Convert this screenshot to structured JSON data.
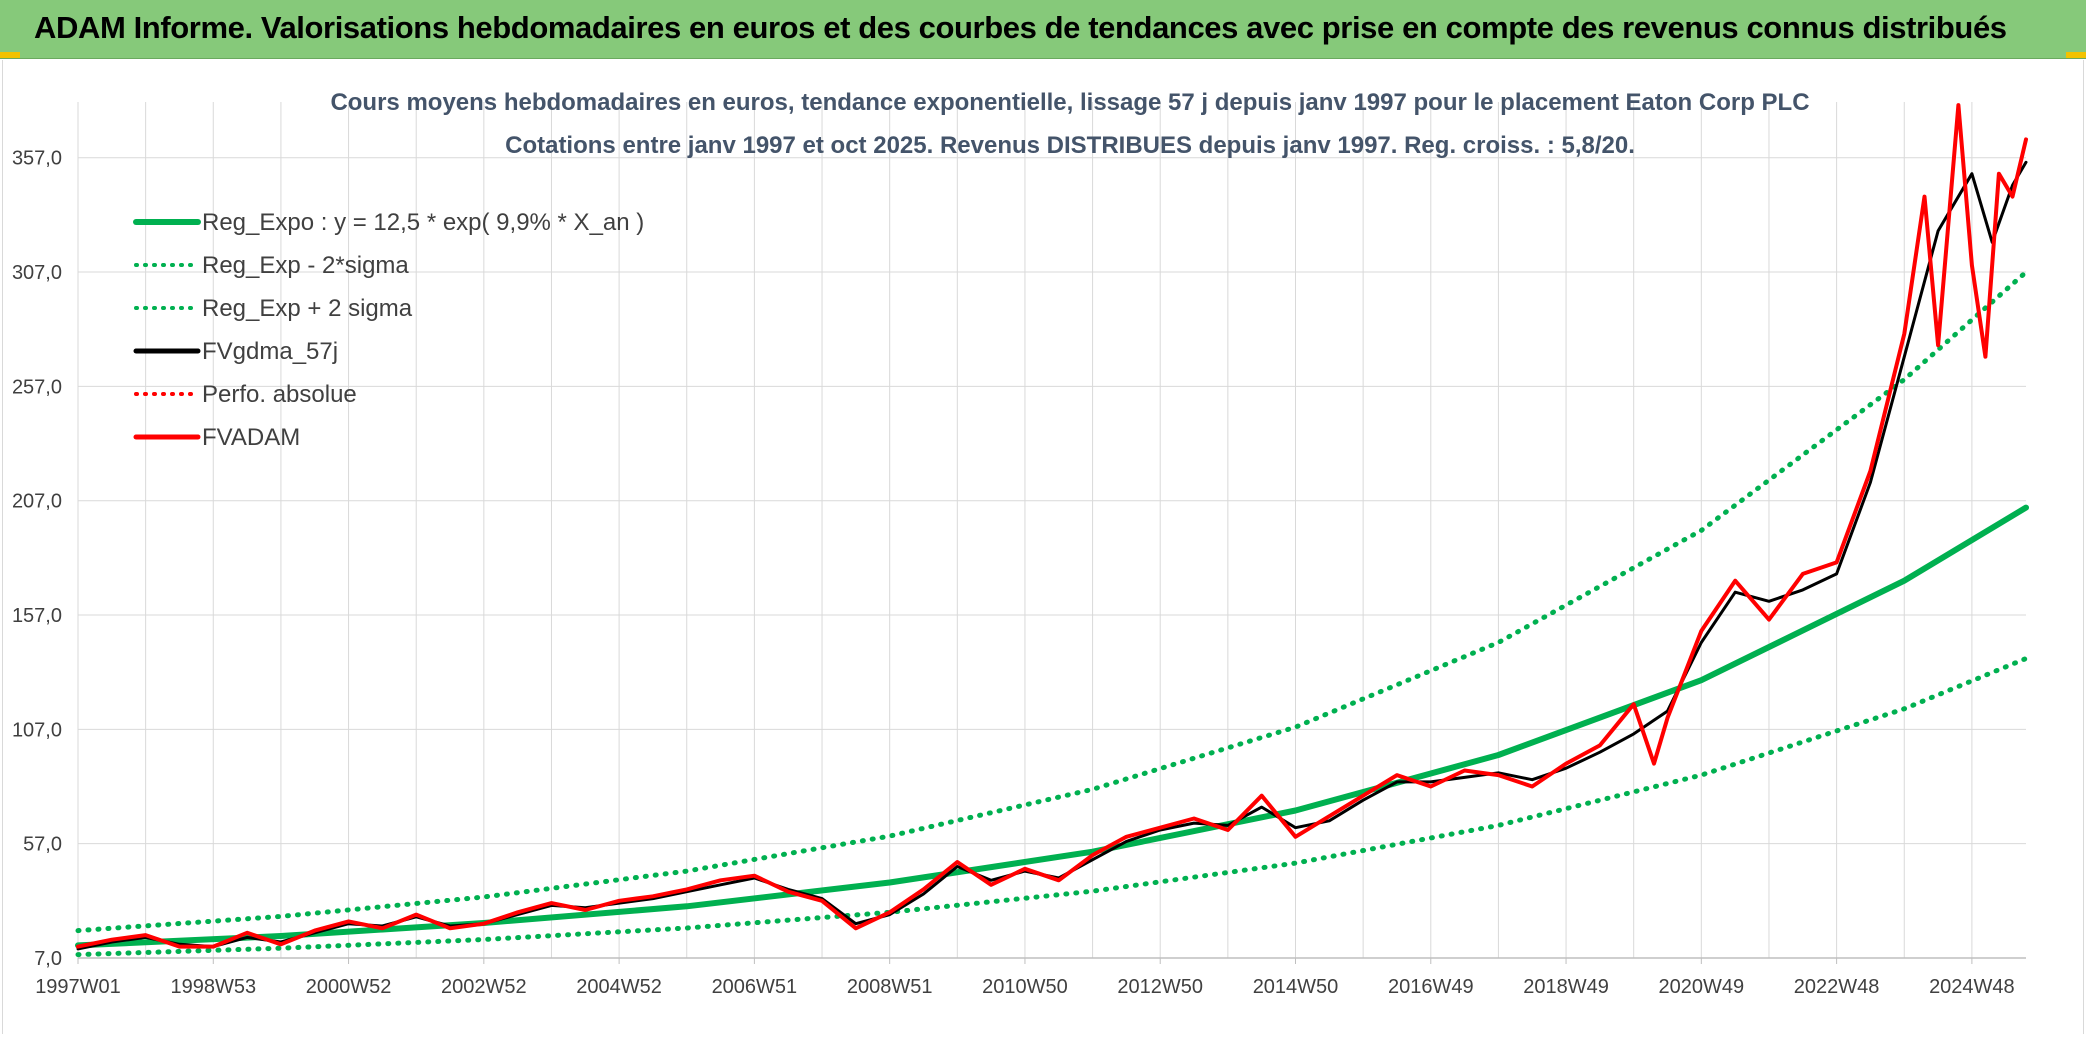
{
  "header": {
    "title": "ADAM Informe. Valorisations hebdomadaires en euros et des courbes de tendances avec prise en compte des revenus connus distribués"
  },
  "colors": {
    "header_bg": "#86c97a",
    "green": "#00b050",
    "black": "#000000",
    "red": "#ff0000",
    "grid": "#d9d9d9",
    "text": "#404040",
    "title_text": "#44546a"
  },
  "chart_data": {
    "type": "line",
    "title_line1": "Cours moyens hebdomadaires en euros, tendance exponentielle, lissage 57 j depuis janv 1997 pour le placement Eaton Corp PLC",
    "title_line2": "Cotations entre janv 1997 et oct 2025. Revenus DISTRIBUES depuis janv 1997. Reg. croiss. : 5,8/20.",
    "xlabel": "",
    "ylabel": "",
    "x_range": [
      1997.0,
      2025.8
    ],
    "ylim": [
      7,
      377
    ],
    "y_ticks": [
      "7,0",
      "57,0",
      "107,0",
      "157,0",
      "207,0",
      "257,0",
      "307,0",
      "357,0"
    ],
    "y_tick_values": [
      7,
      57,
      107,
      157,
      207,
      257,
      307,
      357
    ],
    "x_tick_labels": [
      "1997W01",
      "1998W53",
      "2000W52",
      "2002W52",
      "2004W52",
      "2006W51",
      "2008W51",
      "2010W50",
      "2012W50",
      "2014W50",
      "2016W49",
      "2018W49",
      "2020W49",
      "2022W48",
      "2024W48"
    ],
    "x_tick_years": [
      1997.0,
      1999.0,
      2001.0,
      2003.0,
      2005.0,
      2007.0,
      2009.0,
      2011.0,
      2013.0,
      2015.0,
      2017.0,
      2019.0,
      2021.0,
      2023.0,
      2025.0
    ],
    "grid": true,
    "legend_position": "top-left",
    "legend": [
      {
        "label": "Reg_Expo : y = 12,5 * exp( 9,9% *  X_an )",
        "color": "#00b050",
        "style": "solid"
      },
      {
        "label": "Reg_Exp - 2*sigma",
        "color": "#00b050",
        "style": "dotted"
      },
      {
        "label": "Reg_Exp + 2 sigma",
        "color": "#00b050",
        "style": "dotted"
      },
      {
        "label": "FVgdma_57j",
        "color": "#000000",
        "style": "solid"
      },
      {
        "label": "Perfo. absolue",
        "color": "#ff0000",
        "style": "dotted"
      },
      {
        "label": "FVADAM",
        "color": "#ff0000",
        "style": "solid"
      }
    ],
    "series": [
      {
        "name": "Reg_Expo : y = 12,5 * exp( 9,9% *  X_an )",
        "x": [
          1997.0,
          2000.0,
          2003.0,
          2006.0,
          2009.0,
          2012.0,
          2015.0,
          2018.0,
          2021.0,
          2024.0,
          2025.8
        ],
        "values": [
          12.5,
          16.6,
          22.3,
          29.6,
          40.0,
          53.5,
          71.5,
          95.8,
          128.5,
          172.0,
          204.0
        ]
      },
      {
        "name": "Reg_Exp - 2*sigma",
        "x": [
          1997.0,
          2000.0,
          2003.0,
          2006.0,
          2009.0,
          2012.0,
          2015.0,
          2018.0,
          2021.0,
          2024.0,
          2025.8
        ],
        "values": [
          8.5,
          11.3,
          15.1,
          20.1,
          27.0,
          36.2,
          48.5,
          65.0,
          87.0,
          116.0,
          138.0
        ]
      },
      {
        "name": "Reg_Exp + 2 sigma",
        "x": [
          1997.0,
          2000.0,
          2003.0,
          2006.0,
          2009.0,
          2012.0,
          2015.0,
          2018.0,
          2021.0,
          2024.0,
          2025.8
        ],
        "values": [
          19.0,
          25.2,
          33.7,
          45.0,
          60.3,
          80.8,
          108.0,
          145.0,
          194.0,
          260.0,
          307.0
        ]
      },
      {
        "name": "FVgdma_57j",
        "x": [
          1997.0,
          1997.5,
          1998.0,
          1998.5,
          1999.0,
          1999.5,
          2000.0,
          2000.5,
          2001.0,
          2001.5,
          2002.0,
          2002.5,
          2003.0,
          2003.5,
          2004.0,
          2004.5,
          2005.0,
          2005.5,
          2006.0,
          2006.5,
          2007.0,
          2007.5,
          2008.0,
          2008.5,
          2009.0,
          2009.5,
          2010.0,
          2010.5,
          2011.0,
          2011.5,
          2012.0,
          2012.5,
          2013.0,
          2013.5,
          2014.0,
          2014.5,
          2015.0,
          2015.5,
          2016.0,
          2016.5,
          2017.0,
          2017.5,
          2018.0,
          2018.5,
          2019.0,
          2019.5,
          2020.0,
          2020.5,
          2021.0,
          2021.5,
          2022.0,
          2022.5,
          2023.0,
          2023.5,
          2024.0,
          2024.5,
          2025.0,
          2025.3,
          2025.6,
          2025.8
        ],
        "values": [
          11,
          14,
          16,
          13,
          12,
          16,
          14,
          18,
          22,
          21,
          25,
          21,
          22,
          26,
          30,
          29,
          31,
          33,
          36,
          39,
          42,
          37,
          33,
          22,
          26,
          35,
          47,
          41,
          45,
          42,
          50,
          58,
          63,
          66,
          65,
          73,
          64,
          67,
          76,
          84,
          84,
          86,
          88,
          85,
          90,
          97,
          105,
          115,
          145,
          167,
          163,
          168,
          175,
          215,
          270,
          325,
          350,
          320,
          345,
          355
        ]
      },
      {
        "name": "FVADAM",
        "x": [
          1997.0,
          1997.5,
          1998.0,
          1998.5,
          1999.0,
          1999.5,
          2000.0,
          2000.5,
          2001.0,
          2001.5,
          2002.0,
          2002.5,
          2003.0,
          2003.5,
          2004.0,
          2004.5,
          2005.0,
          2005.5,
          2006.0,
          2006.5,
          2007.0,
          2007.5,
          2008.0,
          2008.5,
          2009.0,
          2009.5,
          2010.0,
          2010.5,
          2011.0,
          2011.5,
          2012.0,
          2012.5,
          2013.0,
          2013.5,
          2014.0,
          2014.5,
          2015.0,
          2015.5,
          2016.0,
          2016.5,
          2017.0,
          2017.5,
          2018.0,
          2018.5,
          2019.0,
          2019.5,
          2020.0,
          2020.3,
          2020.5,
          2021.0,
          2021.5,
          2022.0,
          2022.5,
          2023.0,
          2023.5,
          2024.0,
          2024.3,
          2024.5,
          2024.8,
          2025.0,
          2025.2,
          2025.4,
          2025.6,
          2025.8
        ],
        "values": [
          12,
          15,
          17,
          12,
          12,
          18,
          13,
          19,
          23,
          20,
          26,
          20,
          22,
          27,
          31,
          28,
          32,
          34,
          37,
          41,
          43,
          36,
          32,
          20,
          27,
          37,
          49,
          39,
          46,
          41,
          52,
          60,
          64,
          68,
          63,
          78,
          60,
          69,
          78,
          87,
          82,
          89,
          87,
          82,
          92,
          100,
          118,
          92,
          112,
          150,
          172,
          155,
          175,
          180,
          220,
          280,
          340,
          275,
          380,
          310,
          270,
          350,
          340,
          365
        ]
      }
    ]
  }
}
